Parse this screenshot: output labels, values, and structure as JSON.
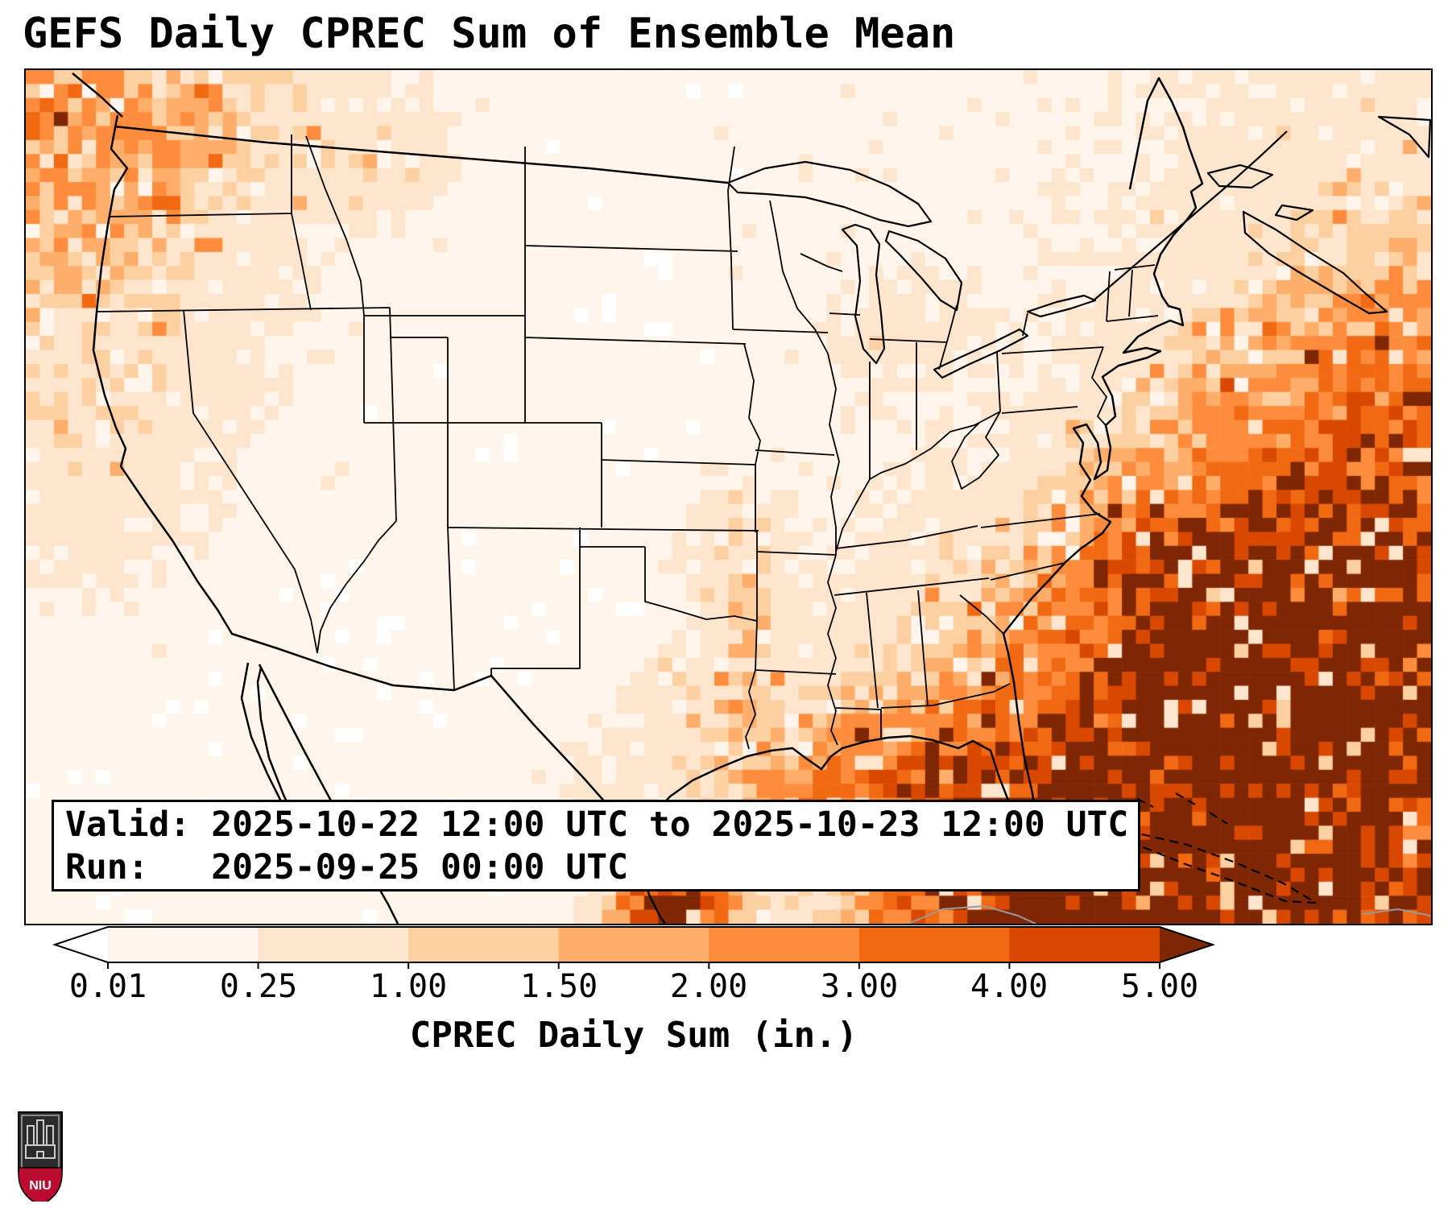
{
  "title": "GEFS Daily CPREC Sum of Ensemble Mean",
  "info_box": {
    "valid_line": "Valid: 2025-10-22 12:00 UTC to 2025-10-23 12:00 UTC",
    "run_line": "Run:   2025-09-25 00:00 UTC"
  },
  "colorbar": {
    "label": "CPREC Daily Sum (in.)",
    "ticks": [
      "0.01",
      "0.25",
      "1.00",
      "1.50",
      "2.00",
      "3.00",
      "4.00",
      "5.00"
    ],
    "boundaries": [
      0.01,
      0.25,
      1.0,
      1.5,
      2.0,
      3.0,
      4.0,
      5.0
    ],
    "bin_colors": [
      "#fff5eb",
      "#fee6ce",
      "#fdd0a2",
      "#fdae6b",
      "#fd8d3c",
      "#f16913",
      "#d94801"
    ],
    "under_color": "#ffffff",
    "over_color": "#7f2704",
    "extend": "both"
  },
  "logo": {
    "text": "NIU",
    "shield_color": "#2b2b2b",
    "band_color": "#ba0c2f"
  }
}
